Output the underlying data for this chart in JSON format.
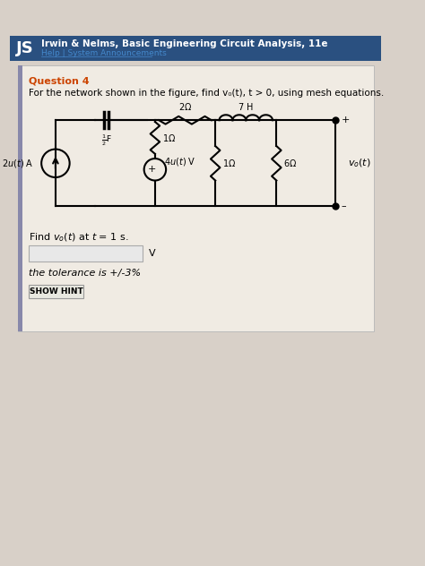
{
  "title": "Irwin & Nelms, Basic Engineering Circuit Analysis, 11e",
  "subtitle": "Help | System Announcements",
  "question_label": "Question 4",
  "question_text": "For the network shown in the figure, find v₀(t), t > 0, using mesh equations.",
  "find_text": "Find v₀(t) at t = 1 s.",
  "tolerance_text": "the tolerance is +/-3%",
  "button_text": "SHOW HINT",
  "unit_label": "V",
  "bg_color": "#d8d0c8",
  "white_box_color": "#f0ebe3",
  "header_bg": "#2a5080",
  "header_text_color": "#ffffff",
  "question_color": "#cc4400",
  "text_color": "#000000",
  "circuit_line_color": "#000000",
  "circuit_bg": "#ffffff",
  "input_box_color": "#e8e8e8",
  "button_border": "#aaaaaa",
  "link_color": "#4488cc"
}
